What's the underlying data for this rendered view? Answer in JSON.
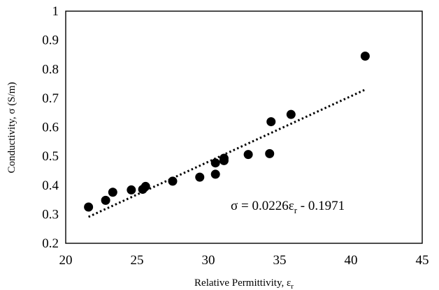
{
  "chart_data": {
    "type": "scatter",
    "title": "",
    "xlabel": {
      "main": "Relative Permittivity, ε",
      "subscript": "r"
    },
    "ylabel": "Conductivity, σ (S/m)",
    "xlim": [
      20,
      45
    ],
    "ylim": [
      0.2,
      1.0
    ],
    "xticks": [
      20,
      25,
      30,
      35,
      40,
      45
    ],
    "yticks": [
      0.2,
      0.3,
      0.4,
      0.5,
      0.6,
      0.7,
      0.8,
      0.9,
      1.0
    ],
    "xtick_labels": [
      "20",
      "25",
      "30",
      "35",
      "40",
      "45"
    ],
    "ytick_labels": [
      "0.2",
      "0.3",
      "0.4",
      "0.5",
      "0.6",
      "0.7",
      "0.8",
      "0.9",
      "1"
    ],
    "grid": false,
    "series": [
      {
        "marker_color": "#000000",
        "x": [
          21.6,
          22.8,
          23.3,
          24.6,
          25.4,
          25.6,
          27.5,
          29.4,
          30.5,
          30.5,
          31.1,
          31.1,
          32.8,
          34.3,
          34.4,
          35.8,
          41.0
        ],
        "y": [
          0.325,
          0.348,
          0.376,
          0.384,
          0.386,
          0.396,
          0.414,
          0.428,
          0.438,
          0.477,
          0.485,
          0.493,
          0.506,
          0.509,
          0.619,
          0.644,
          0.845
        ]
      }
    ],
    "trendline": {
      "style": "dotted",
      "slope": 0.0226,
      "intercept": -0.1971,
      "x_range": [
        21.6,
        41.0
      ],
      "equation": {
        "prefix": "σ = 0.0226ε",
        "subscript": "r",
        "suffix": " - 0.1971"
      }
    }
  }
}
